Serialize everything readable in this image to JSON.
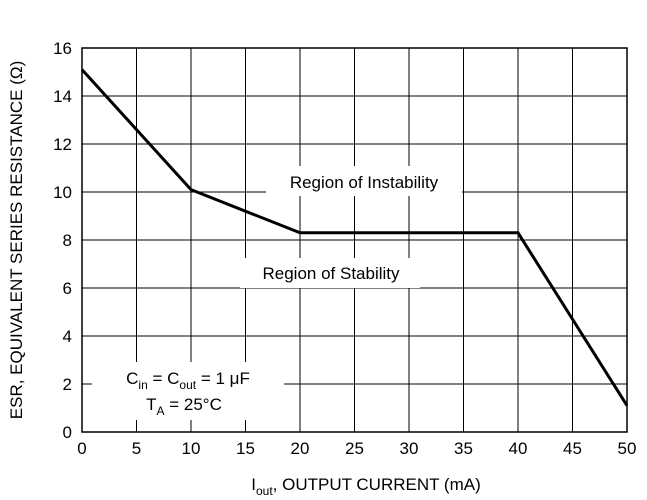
{
  "chart_data": {
    "type": "line",
    "xlabel": {
      "main": "I",
      "sub": "out",
      "rest": ", OUTPUT CURRENT (mA)"
    },
    "ylabel": "ESR, EQUIVALENT SERIES RESISTANCE (Ω)",
    "xlim": [
      0,
      50
    ],
    "ylim": [
      0,
      16
    ],
    "x_ticks": [
      0,
      5,
      10,
      15,
      20,
      25,
      30,
      35,
      40,
      45,
      50
    ],
    "y_ticks": [
      0,
      2,
      4,
      6,
      8,
      10,
      12,
      14,
      16
    ],
    "grid": true,
    "series": [
      {
        "x": [
          0,
          10,
          20,
          40,
          50
        ],
        "y": [
          15.1,
          10.1,
          8.3,
          8.3,
          1.1
        ]
      }
    ],
    "annotations": {
      "instability": "Region of Instability",
      "stability": "Region of Stability",
      "cap_line1": {
        "c1": "C",
        "c1_sub": "in",
        "eq1": " = C",
        "c2_sub": "out",
        "eq2": " = 1 μF"
      },
      "cap_line2": {
        "t": "T",
        "t_sub": "A",
        "rest": " = 25°C"
      }
    }
  }
}
